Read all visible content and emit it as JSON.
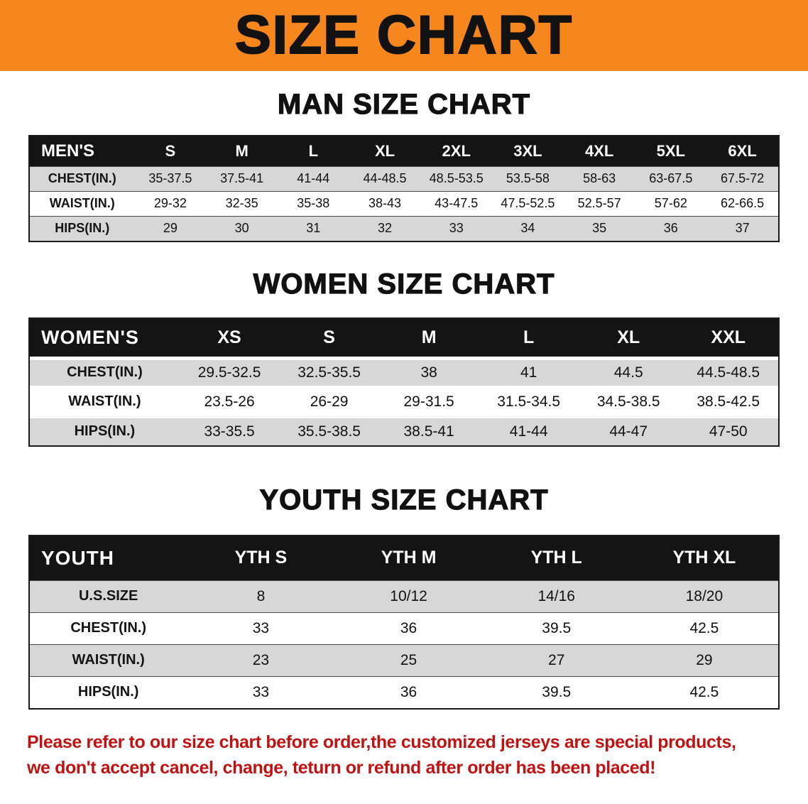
{
  "banner": {
    "title": "SIZE CHART"
  },
  "sections": [
    {
      "id": "man",
      "heading": "MAN SIZE CHART",
      "table": {
        "header": [
          "MEN'S",
          "S",
          "M",
          "L",
          "XL",
          "2XL",
          "3XL",
          "4XL",
          "5XL",
          "6XL"
        ],
        "rows": [
          {
            "label": "CHEST(IN.)",
            "values": [
              "35-37.5",
              "37.5-41",
              "41-44",
              "44-48.5",
              "48.5-53.5",
              "53.5-58",
              "58-63",
              "63-67.5",
              "67.5-72"
            ]
          },
          {
            "label": "WAIST(IN.)",
            "values": [
              "29-32",
              "32-35",
              "35-38",
              "38-43",
              "43-47.5",
              "47.5-52.5",
              "52.5-57",
              "57-62",
              "62-66.5"
            ]
          },
          {
            "label": "HIPS(IN.)",
            "values": [
              "29",
              "30",
              "31",
              "32",
              "33",
              "34",
              "35",
              "36",
              "37"
            ]
          }
        ]
      }
    },
    {
      "id": "women",
      "heading": "WOMEN SIZE CHART",
      "table": {
        "header": [
          "WOMEN'S",
          "XS",
          "S",
          "M",
          "L",
          "XL",
          "XXL"
        ],
        "rows": [
          {
            "label": "CHEST(IN.)",
            "values": [
              "29.5-32.5",
              "32.5-35.5",
              "38",
              "41",
              "44.5",
              "44.5-48.5"
            ]
          },
          {
            "label": "WAIST(IN.)",
            "values": [
              "23.5-26",
              "26-29",
              "29-31.5",
              "31.5-34.5",
              "34.5-38.5",
              "38.5-42.5"
            ]
          },
          {
            "label": "HIPS(IN.)",
            "values": [
              "33-35.5",
              "35.5-38.5",
              "38.5-41",
              "41-44",
              "44-47",
              "47-50"
            ]
          }
        ]
      }
    },
    {
      "id": "youth",
      "heading": "YOUTH SIZE CHART",
      "table": {
        "header": [
          "YOUTH",
          "YTH S",
          "YTH M",
          "YTH L",
          "YTH XL"
        ],
        "rows": [
          {
            "label": "U.S.SIZE",
            "values": [
              "8",
              "10/12",
              "14/16",
              "18/20"
            ]
          },
          {
            "label": "CHEST(IN.)",
            "values": [
              "33",
              "36",
              "39.5",
              "42.5"
            ]
          },
          {
            "label": "WAIST(IN.)",
            "values": [
              "23",
              "25",
              "27",
              "29"
            ]
          },
          {
            "label": "HIPS(IN.)",
            "values": [
              "33",
              "36",
              "39.5",
              "42.5"
            ]
          }
        ]
      }
    }
  ],
  "footer": {
    "line1": "Please refer to our size chart before order,the customized jerseys are special products,",
    "line2": "we don't accept cancel, change, teturn or refund after order has been placed!"
  },
  "colors": {
    "banner_bg": "#f6861e",
    "header_bg": "#141414",
    "stripe": "#d7d7d7",
    "footer_text": "#c11212"
  }
}
